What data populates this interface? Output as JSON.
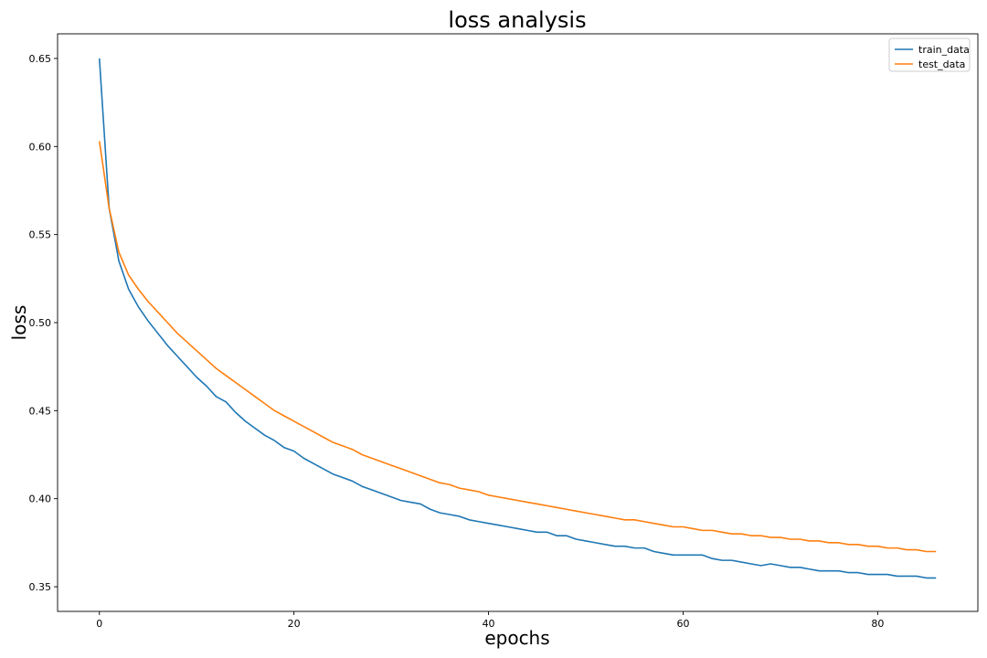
{
  "chart_data": {
    "type": "line",
    "title": "loss analysis",
    "xlabel": "epochs",
    "ylabel": "loss",
    "xlim": [
      -4.3,
      90.3
    ],
    "ylim": [
      0.336,
      0.664
    ],
    "xticks": [
      0,
      20,
      40,
      60,
      80
    ],
    "yticks": [
      0.35,
      0.4,
      0.45,
      0.5,
      0.55,
      0.6,
      0.65
    ],
    "xtick_labels": [
      "0",
      "20",
      "40",
      "60",
      "80"
    ],
    "ytick_labels": [
      "0.35",
      "0.40",
      "0.45",
      "0.50",
      "0.55",
      "0.60",
      "0.65"
    ],
    "grid": false,
    "legend_position": "top-right",
    "x": [
      0,
      1,
      2,
      3,
      4,
      5,
      6,
      7,
      8,
      9,
      10,
      11,
      12,
      13,
      14,
      15,
      16,
      17,
      18,
      19,
      20,
      21,
      22,
      23,
      24,
      25,
      26,
      27,
      28,
      29,
      30,
      31,
      32,
      33,
      34,
      35,
      36,
      37,
      38,
      39,
      40,
      41,
      42,
      43,
      44,
      45,
      46,
      47,
      48,
      49,
      50,
      51,
      52,
      53,
      54,
      55,
      56,
      57,
      58,
      59,
      60,
      61,
      62,
      63,
      64,
      65,
      66,
      67,
      68,
      69,
      70,
      71,
      72,
      73,
      74,
      75,
      76,
      77,
      78,
      79,
      80,
      81,
      82,
      83,
      84,
      85,
      86
    ],
    "series": [
      {
        "name": "train_data",
        "color": "#1f77b4",
        "values": [
          0.65,
          0.565,
          0.535,
          0.519,
          0.509,
          0.501,
          0.494,
          0.487,
          0.481,
          0.475,
          0.469,
          0.464,
          0.458,
          0.455,
          0.449,
          0.444,
          0.44,
          0.436,
          0.433,
          0.429,
          0.427,
          0.423,
          0.42,
          0.417,
          0.414,
          0.412,
          0.41,
          0.407,
          0.405,
          0.403,
          0.401,
          0.399,
          0.398,
          0.397,
          0.394,
          0.392,
          0.391,
          0.39,
          0.388,
          0.387,
          0.386,
          0.385,
          0.384,
          0.383,
          0.382,
          0.381,
          0.381,
          0.379,
          0.379,
          0.377,
          0.376,
          0.375,
          0.374,
          0.373,
          0.373,
          0.372,
          0.372,
          0.37,
          0.369,
          0.368,
          0.368,
          0.368,
          0.368,
          0.366,
          0.365,
          0.365,
          0.364,
          0.363,
          0.362,
          0.363,
          0.362,
          0.361,
          0.361,
          0.36,
          0.359,
          0.359,
          0.359,
          0.358,
          0.358,
          0.357,
          0.357,
          0.357,
          0.356,
          0.356,
          0.356,
          0.355,
          0.355
        ]
      },
      {
        "name": "test_data",
        "color": "#ff7f0e",
        "values": [
          0.603,
          0.565,
          0.54,
          0.527,
          0.519,
          0.512,
          0.506,
          0.5,
          0.494,
          0.489,
          0.484,
          0.479,
          0.474,
          0.47,
          0.466,
          0.462,
          0.458,
          0.454,
          0.45,
          0.447,
          0.444,
          0.441,
          0.438,
          0.435,
          0.432,
          0.43,
          0.428,
          0.425,
          0.423,
          0.421,
          0.419,
          0.417,
          0.415,
          0.413,
          0.411,
          0.409,
          0.408,
          0.406,
          0.405,
          0.404,
          0.402,
          0.401,
          0.4,
          0.399,
          0.398,
          0.397,
          0.396,
          0.395,
          0.394,
          0.393,
          0.392,
          0.391,
          0.39,
          0.389,
          0.388,
          0.388,
          0.387,
          0.386,
          0.385,
          0.384,
          0.384,
          0.383,
          0.382,
          0.382,
          0.381,
          0.38,
          0.38,
          0.379,
          0.379,
          0.378,
          0.378,
          0.377,
          0.377,
          0.376,
          0.376,
          0.375,
          0.375,
          0.374,
          0.374,
          0.373,
          0.373,
          0.372,
          0.372,
          0.371,
          0.371,
          0.37,
          0.37
        ]
      }
    ]
  }
}
